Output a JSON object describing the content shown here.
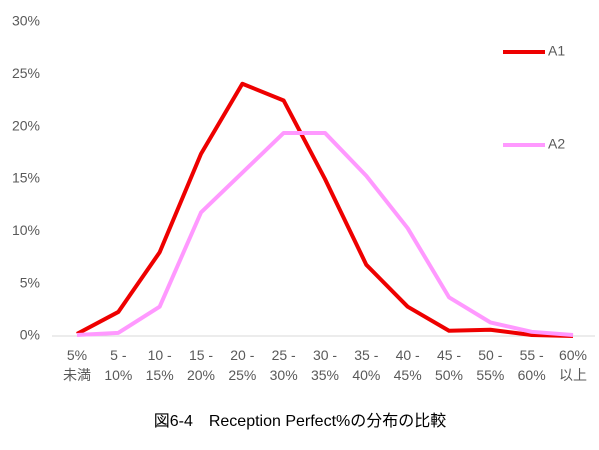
{
  "chart_data": {
    "type": "line",
    "title": "図6-4　Reception Perfect%の分布の比較",
    "categories": [
      [
        "5%",
        "未満"
      ],
      [
        "5 -",
        "10%"
      ],
      [
        "10 -",
        "15%"
      ],
      [
        "15 -",
        "20%"
      ],
      [
        "20 -",
        "25%"
      ],
      [
        "25 -",
        "30%"
      ],
      [
        "30 -",
        "35%"
      ],
      [
        "35 -",
        "40%"
      ],
      [
        "40 -",
        "45%"
      ],
      [
        "45 -",
        "50%"
      ],
      [
        "50 -",
        "55%"
      ],
      [
        "55 -",
        "60%"
      ],
      [
        "60%",
        "以上"
      ]
    ],
    "series": [
      {
        "name": "A1",
        "color": "#ee0000",
        "values": [
          0.2,
          2.3,
          8.0,
          17.4,
          24.1,
          22.5,
          15.0,
          6.8,
          2.8,
          0.5,
          0.6,
          0.1,
          0.0
        ]
      },
      {
        "name": "A2",
        "color": "#ff99ff",
        "values": [
          0.1,
          0.3,
          2.8,
          11.8,
          15.6,
          19.4,
          19.4,
          15.3,
          10.3,
          3.7,
          1.3,
          0.4,
          0.1
        ]
      }
    ],
    "ylim": [
      0,
      30
    ],
    "yticks": [
      {
        "value": 0,
        "label": "0%"
      },
      {
        "value": 5,
        "label": "5%"
      },
      {
        "value": 10,
        "label": "10%"
      },
      {
        "value": 15,
        "label": "15%"
      },
      {
        "value": 20,
        "label": "20%"
      },
      {
        "value": 25,
        "label": "25%"
      },
      {
        "value": 30,
        "label": "30%"
      }
    ],
    "grid": false,
    "legend": "right"
  }
}
